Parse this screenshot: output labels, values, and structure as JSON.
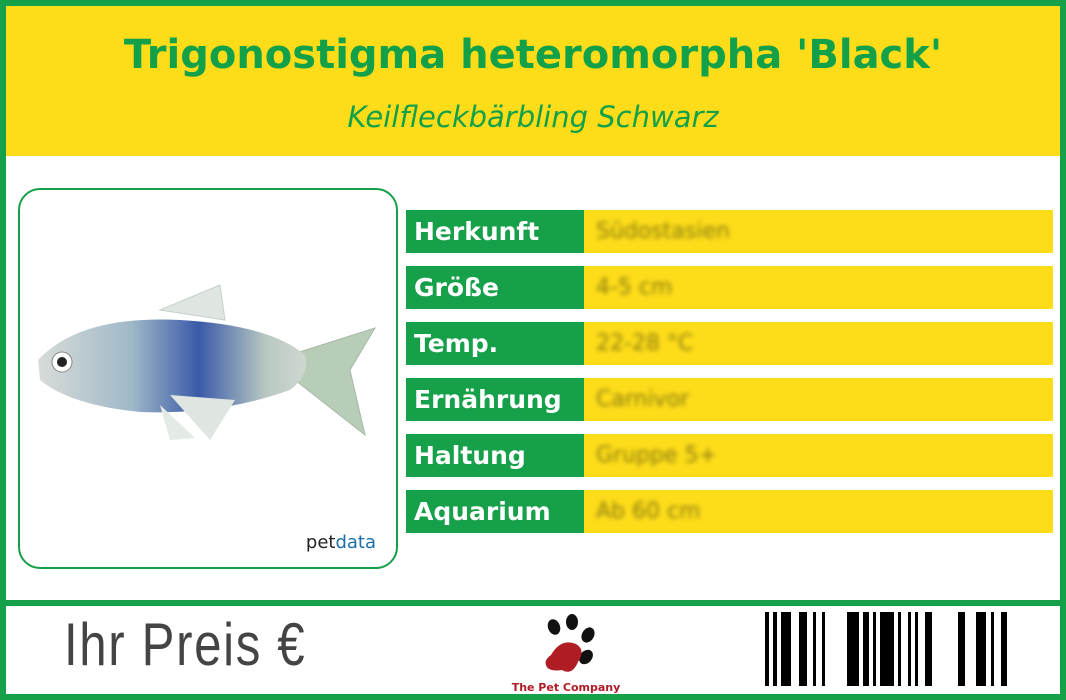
{
  "header": {
    "title": "Trigonostigma heteromorpha 'Black'",
    "subtitle": "Keilfleckbärbling Schwarz"
  },
  "photo": {
    "credit_prefix": "pet",
    "credit_suffix": "data"
  },
  "facts": [
    {
      "label": "Herkunft",
      "value": "Südostasien"
    },
    {
      "label": "Größe",
      "value": "4-5 cm"
    },
    {
      "label": "Temp.",
      "value": "22-28 °C"
    },
    {
      "label": "Ernährung",
      "value": "Carnivor"
    },
    {
      "label": "Haltung",
      "value": "Gruppe 5+"
    },
    {
      "label": "Aquarium",
      "value": "Ab 60 cm"
    }
  ],
  "footer": {
    "price_label": "Ihr Preis €",
    "logo_text": "The Pet Company"
  },
  "colors": {
    "green": "#16a04a",
    "yellow": "#fddd1a",
    "logo_red": "#b01c24"
  }
}
